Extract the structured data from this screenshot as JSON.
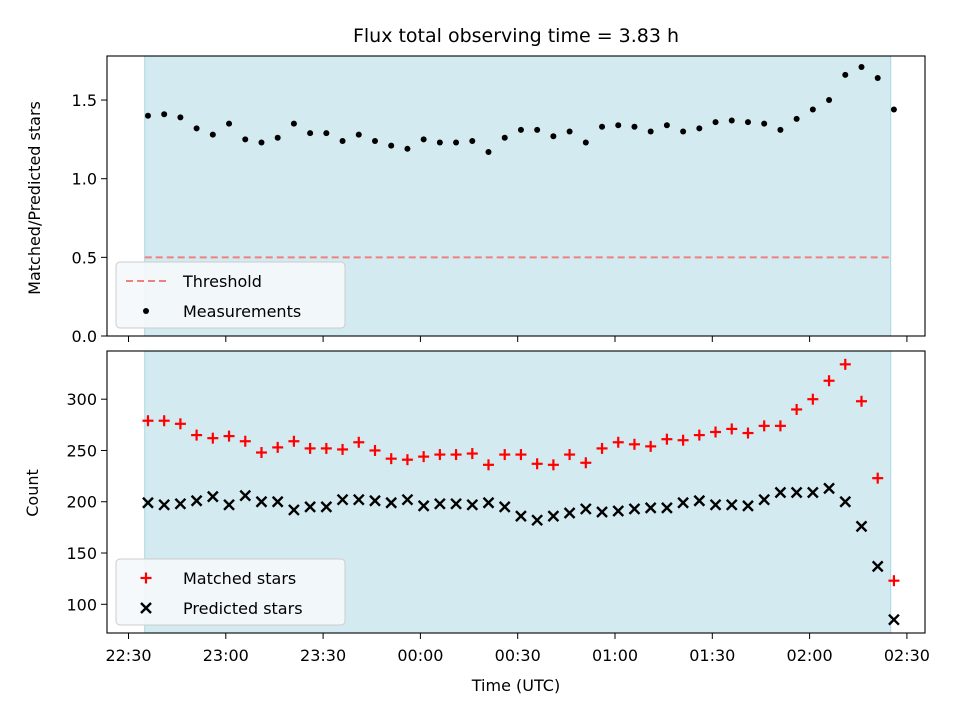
{
  "chart_data": {
    "type": "scatter",
    "title": "Flux total observing time = 3.83 h",
    "xlabel": "Time (UTC)",
    "x_tick_labels": [
      "22:30",
      "23:00",
      "23:30",
      "00:00",
      "00:30",
      "01:00",
      "01:30",
      "02:00",
      "02:30"
    ],
    "x_times": [
      "22:36",
      "22:41",
      "22:46",
      "22:51",
      "22:56",
      "23:01",
      "23:06",
      "23:11",
      "23:16",
      "23:21",
      "23:26",
      "23:31",
      "23:36",
      "23:41",
      "23:46",
      "23:51",
      "23:56",
      "00:01",
      "00:06",
      "00:11",
      "00:16",
      "00:21",
      "00:26",
      "00:31",
      "00:36",
      "00:41",
      "00:46",
      "00:51",
      "00:56",
      "01:01",
      "01:06",
      "01:11",
      "01:16",
      "01:21",
      "01:26",
      "01:31",
      "01:36",
      "01:41",
      "01:46",
      "01:51",
      "01:56",
      "02:01",
      "02:06",
      "02:11",
      "02:16",
      "02:21",
      "02:26"
    ],
    "shaded_span": [
      "22:35",
      "02:25"
    ],
    "panels": [
      {
        "ylabel": "Matched/Predicted stars",
        "ylim": [
          0,
          1.78
        ],
        "y_ticks": [
          0.0,
          0.5,
          1.0,
          1.5
        ],
        "y_tick_labels": [
          "0.0",
          "0.5",
          "1.0",
          "1.5"
        ],
        "legend_position": "lower-left",
        "series": [
          {
            "name": "Threshold",
            "kind": "dashed-line",
            "color": "#f08080",
            "value": 0.5
          },
          {
            "name": "Measurements",
            "kind": "dot",
            "color": "#000000",
            "values": [
              1.4,
              1.41,
              1.39,
              1.32,
              1.28,
              1.35,
              1.25,
              1.23,
              1.26,
              1.35,
              1.29,
              1.29,
              1.24,
              1.28,
              1.24,
              1.21,
              1.19,
              1.25,
              1.23,
              1.23,
              1.24,
              1.17,
              1.26,
              1.31,
              1.31,
              1.27,
              1.3,
              1.23,
              1.33,
              1.34,
              1.33,
              1.3,
              1.34,
              1.3,
              1.32,
              1.36,
              1.37,
              1.36,
              1.35,
              1.31,
              1.38,
              1.44,
              1.5,
              1.66,
              1.71,
              1.64,
              1.44
            ]
          }
        ]
      },
      {
        "ylabel": "Count",
        "ylim": [
          72,
          347
        ],
        "y_ticks": [
          100,
          150,
          200,
          250,
          300
        ],
        "y_tick_labels": [
          "100",
          "150",
          "200",
          "250",
          "300"
        ],
        "legend_position": "lower-left",
        "series": [
          {
            "name": "Matched stars",
            "kind": "plus",
            "color": "#ff0000",
            "values": [
              279,
              279,
              276,
              265,
              262,
              264,
              259,
              248,
              253,
              259,
              252,
              252,
              251,
              258,
              250,
              242,
              241,
              244,
              246,
              246,
              247,
              236,
              246,
              246,
              237,
              236,
              246,
              238,
              252,
              258,
              256,
              254,
              261,
              260,
              265,
              268,
              271,
              267,
              274,
              274,
              290,
              300,
              318,
              334,
              298,
              223,
              123
            ]
          },
          {
            "name": "Predicted stars",
            "kind": "x",
            "color": "#000000",
            "values": [
              199,
              197,
              198,
              201,
              205,
              197,
              206,
              200,
              200,
              192,
              195,
              195,
              202,
              202,
              201,
              199,
              202,
              196,
              198,
              198,
              197,
              199,
              195,
              186,
              182,
              186,
              189,
              193,
              190,
              191,
              193,
              194,
              194,
              199,
              201,
              197,
              197,
              196,
              202,
              209,
              209,
              209,
              213,
              200,
              176,
              137,
              85
            ]
          }
        ]
      }
    ]
  },
  "colors": {
    "shade": "#d3eaf0",
    "shade_edge": "#a9d6e3",
    "axis": "#000000",
    "legend_bg": "#f5f8fb",
    "legend_border": "#cccccc"
  }
}
